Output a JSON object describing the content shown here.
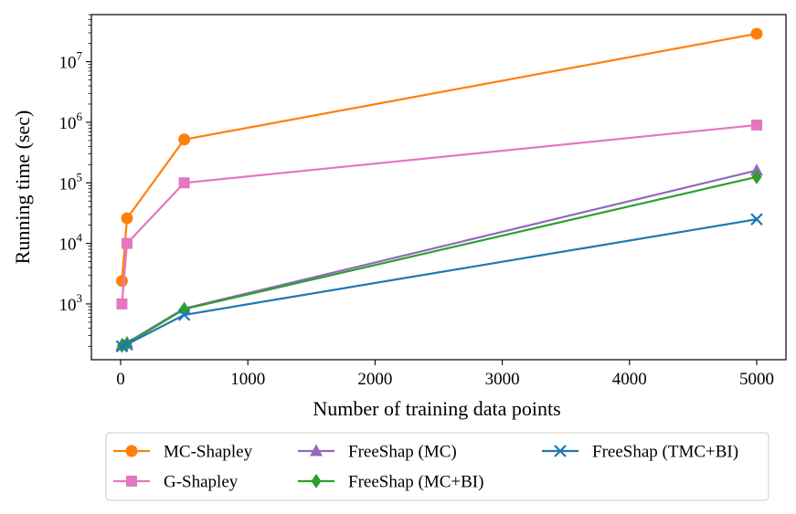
{
  "chart_data": {
    "type": "line",
    "title": "",
    "xlabel": "Number of training data points",
    "ylabel": "Running time (sec)",
    "xscale": "linear",
    "yscale": "log",
    "xlim": [
      -230,
      5230
    ],
    "ylim": [
      120,
      60000000
    ],
    "x": [
      10,
      50,
      500,
      5000
    ],
    "xticks": [
      0,
      1000,
      2000,
      3000,
      4000,
      5000
    ],
    "xtick_labels": [
      "0",
      "1000",
      "2000",
      "3000",
      "4000",
      "5000"
    ],
    "yticks": [
      1000,
      10000,
      100000,
      1000000,
      10000000
    ],
    "ytick_labels": [
      {
        "base": "10",
        "exp": "3"
      },
      {
        "base": "10",
        "exp": "4"
      },
      {
        "base": "10",
        "exp": "5"
      },
      {
        "base": "10",
        "exp": "6"
      },
      {
        "base": "10",
        "exp": "7"
      }
    ],
    "series": [
      {
        "name": "MC-Shapley",
        "color": "#ff7f0e",
        "marker": "circle",
        "values": [
          2400,
          26000,
          520000,
          29000000
        ]
      },
      {
        "name": "G-Shapley",
        "color": "#e377c2",
        "marker": "square",
        "values": [
          1000,
          10000,
          100000,
          900000
        ]
      },
      {
        "name": "FreeShap (MC)",
        "color": "#9467bd",
        "marker": "triangle",
        "values": [
          210,
          230,
          840,
          160000
        ]
      },
      {
        "name": "FreeShap (MC+BI)",
        "color": "#2ca02c",
        "marker": "diamond",
        "values": [
          205,
          220,
          820,
          125000
        ]
      },
      {
        "name": "FreeShap (TMC+BI)",
        "color": "#1f77b4",
        "marker": "x",
        "values": [
          200,
          215,
          660,
          25000
        ]
      }
    ],
    "legend": {
      "position": "below",
      "columns": 3
    }
  }
}
